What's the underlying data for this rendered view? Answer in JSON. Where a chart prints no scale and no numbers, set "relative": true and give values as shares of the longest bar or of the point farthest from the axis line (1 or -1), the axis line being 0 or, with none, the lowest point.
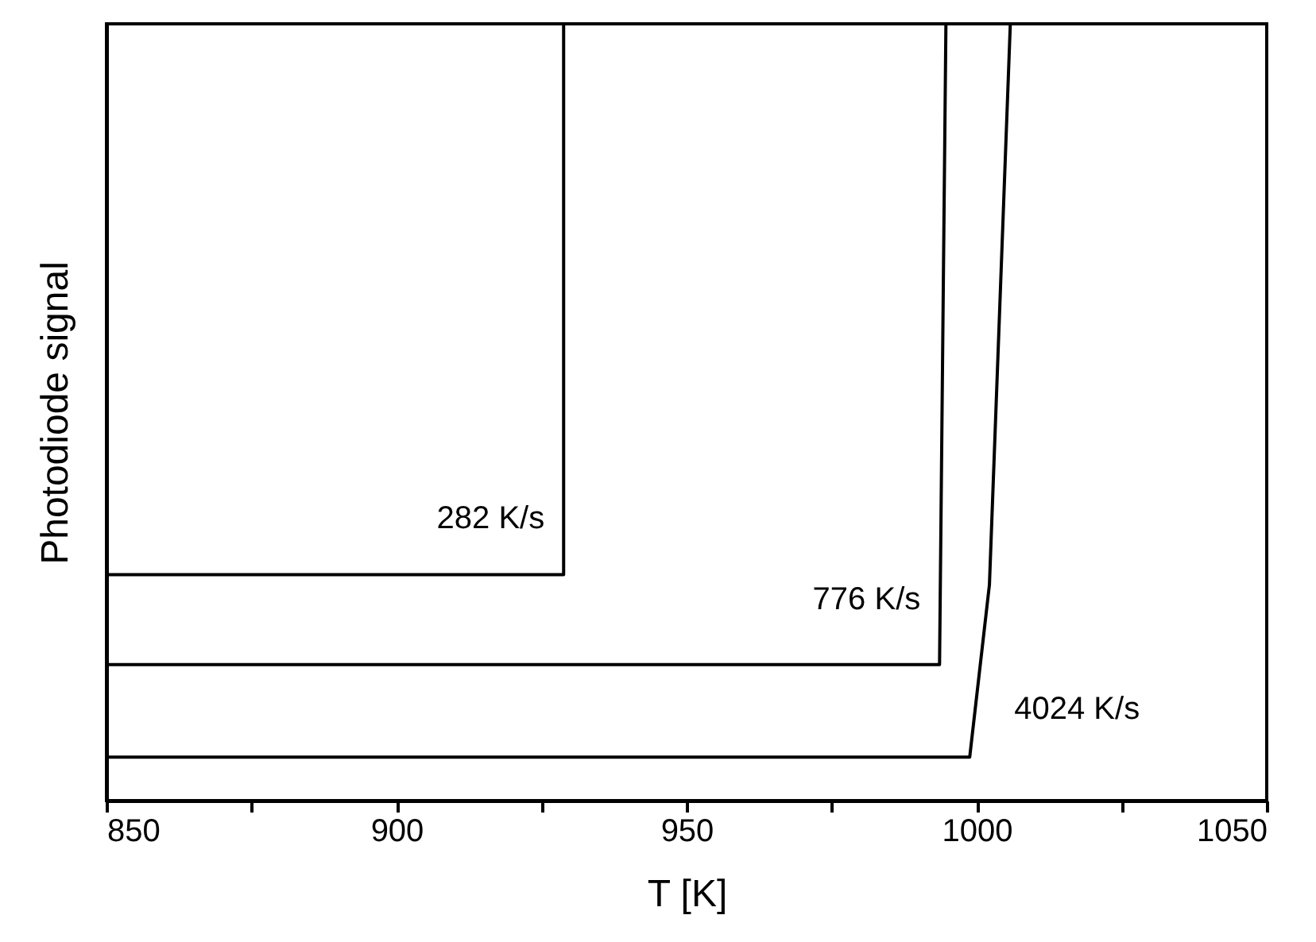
{
  "chart_data": {
    "type": "line",
    "xlabel": "T [K]",
    "ylabel": "Photodiode signal",
    "relative": true,
    "xlim": [
      850,
      1050
    ],
    "xticks": [
      850,
      {
        "value": 875,
        "label": null
      },
      900,
      {
        "value": 925,
        "label": null
      },
      950,
      {
        "value": 975,
        "label": null
      },
      1000,
      {
        "value": 1025,
        "label": null
      },
      1050
    ],
    "grid": false,
    "line_style": "solid",
    "marker": "none",
    "series": [
      {
        "name": "282 K/s",
        "color": "#000000",
        "x": [
          850,
          928.8,
          928.8
        ],
        "values": [
          0.291,
          0.291,
          1
        ]
      },
      {
        "name": "776 K/s",
        "color": "#000000",
        "x": [
          850,
          993.6,
          994.7
        ],
        "values": [
          0.175,
          0.175,
          1
        ]
      },
      {
        "name": "4024 K/s",
        "color": "#000000",
        "x": [
          850,
          998.8,
          1002.2,
          1005.8
        ],
        "values": [
          0.056,
          0.056,
          0.278,
          1
        ]
      }
    ]
  }
}
